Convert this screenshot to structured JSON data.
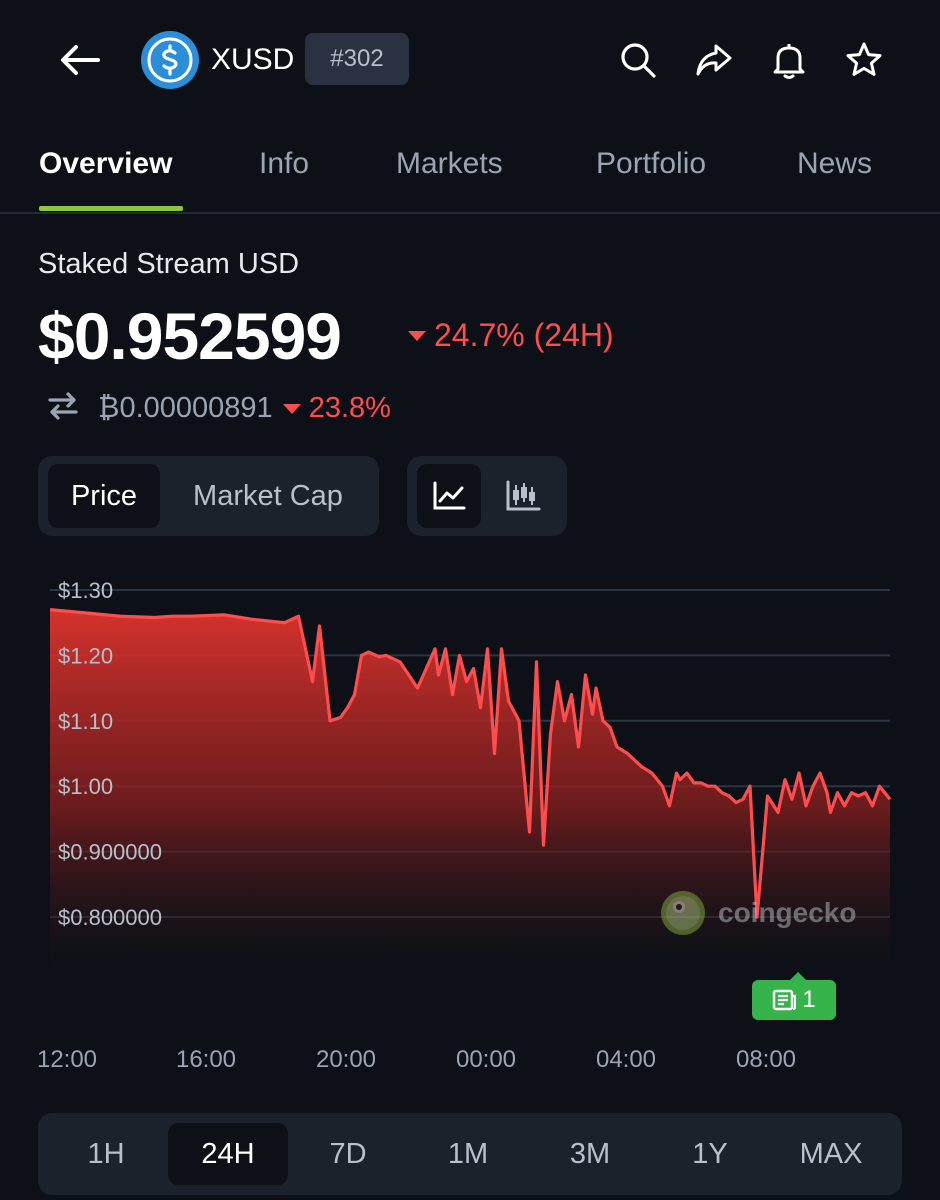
{
  "header": {
    "symbol": "XUSD",
    "rank": "#302",
    "icons": [
      "back-arrow-icon",
      "search-icon",
      "share-icon",
      "bell-icon",
      "star-icon"
    ]
  },
  "tabs": [
    "Overview",
    "Info",
    "Markets",
    "Portfolio",
    "News"
  ],
  "active_tab": "Overview",
  "coin": {
    "name": "Staked Stream USD",
    "price": "$0.952599",
    "change_24h": "24.7% (24H)",
    "btc_price": "₿0.00000891",
    "btc_change": "23.8%"
  },
  "toggles": {
    "price_label": "Price",
    "market_cap_label": "Market Cap"
  },
  "watermark": "coingecko",
  "news_badge": "1",
  "ranges": [
    "1H",
    "24H",
    "7D",
    "1M",
    "3M",
    "1Y",
    "MAX"
  ],
  "active_range": "24H",
  "colors": {
    "background": "#0d1117",
    "down": "#ff4d4d",
    "accent_tab": "#8dc63f",
    "news_badge": "#36b34a"
  },
  "chart_data": {
    "type": "area",
    "ytick_labels": [
      "$1.30",
      "$1.20",
      "$1.10",
      "$1.00",
      "$0.900000",
      "$0.800000"
    ],
    "yticks": [
      1.3,
      1.2,
      1.1,
      1.0,
      0.9,
      0.8
    ],
    "xtick_labels": [
      "12:00",
      "16:00",
      "20:00",
      "00:00",
      "04:00",
      "08:00"
    ],
    "ylim": [
      0.73,
      1.32
    ],
    "xlim": [
      0,
      24
    ],
    "grid": true,
    "series": [
      {
        "x": [
          0,
          1,
          2,
          3,
          3.5,
          4,
          5,
          5.8,
          6.7,
          7.1,
          7.5,
          7.7,
          8.0,
          8.3,
          8.5,
          8.7,
          8.9,
          9.1,
          9.4,
          9.6,
          10.0,
          10.5,
          11.0,
          11.1,
          11.3,
          11.5,
          11.7,
          11.9,
          12.1,
          12.3,
          12.5,
          12.7,
          12.9,
          13.1,
          13.4,
          13.7,
          13.9,
          14.1,
          14.3,
          14.5,
          14.7,
          14.9,
          15.1,
          15.3,
          15.5,
          15.6,
          15.8,
          16.0,
          16.2,
          16.5,
          16.9,
          17.2,
          17.5,
          17.7,
          17.9,
          18.0,
          18.2,
          18.4,
          18.6,
          18.8,
          19.0,
          19.2,
          19.4,
          19.6,
          19.8,
          20.0,
          20.2,
          20.5,
          20.8,
          21.0,
          21.2,
          21.4,
          21.6,
          21.8,
          22.0,
          22.2,
          22.3,
          22.5,
          22.7,
          22.9,
          23.1,
          23.3,
          23.5,
          23.7,
          24.0
        ],
        "values": [
          1.27,
          1.265,
          1.26,
          1.258,
          1.26,
          1.26,
          1.262,
          1.255,
          1.25,
          1.26,
          1.16,
          1.245,
          1.1,
          1.105,
          1.12,
          1.14,
          1.2,
          1.205,
          1.198,
          1.2,
          1.19,
          1.15,
          1.21,
          1.17,
          1.21,
          1.14,
          1.2,
          1.16,
          1.18,
          1.12,
          1.21,
          1.05,
          1.21,
          1.13,
          1.1,
          0.93,
          1.19,
          0.91,
          1.08,
          1.16,
          1.1,
          1.14,
          1.06,
          1.17,
          1.11,
          1.15,
          1.1,
          1.09,
          1.06,
          1.05,
          1.03,
          1.02,
          1.0,
          0.97,
          1.02,
          1.01,
          1.02,
          1.005,
          1.005,
          1.0,
          1.0,
          0.99,
          0.985,
          0.975,
          0.98,
          1.0,
          0.8,
          0.985,
          0.96,
          1.01,
          0.98,
          1.02,
          0.97,
          1.0,
          1.02,
          0.99,
          0.96,
          0.99,
          0.97,
          0.99,
          0.985,
          0.99,
          0.97,
          1.0,
          0.98
        ]
      }
    ]
  }
}
